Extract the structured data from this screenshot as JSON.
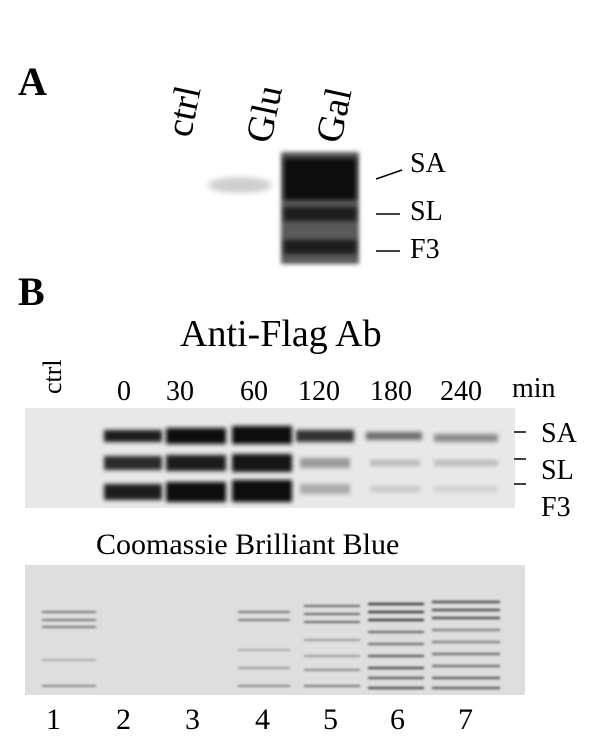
{
  "panel_a": {
    "letter": "A",
    "lanes": [
      "ctrl",
      "Glu",
      "Gal"
    ],
    "bands": [
      "SA",
      "SL",
      "F3"
    ]
  },
  "panel_b": {
    "letter": "B",
    "ctrl_label": "ctrl",
    "blot_title": "Anti-Flag Ab",
    "times": [
      "0",
      "30",
      "60",
      "120",
      "180",
      "240"
    ],
    "time_unit": "min",
    "bands": [
      "SA",
      "SL",
      "F3"
    ],
    "stain_title": "Coomassie Brilliant Blue",
    "lane_numbers": [
      "1",
      "2",
      "3",
      "4",
      "5",
      "6",
      "7"
    ]
  }
}
